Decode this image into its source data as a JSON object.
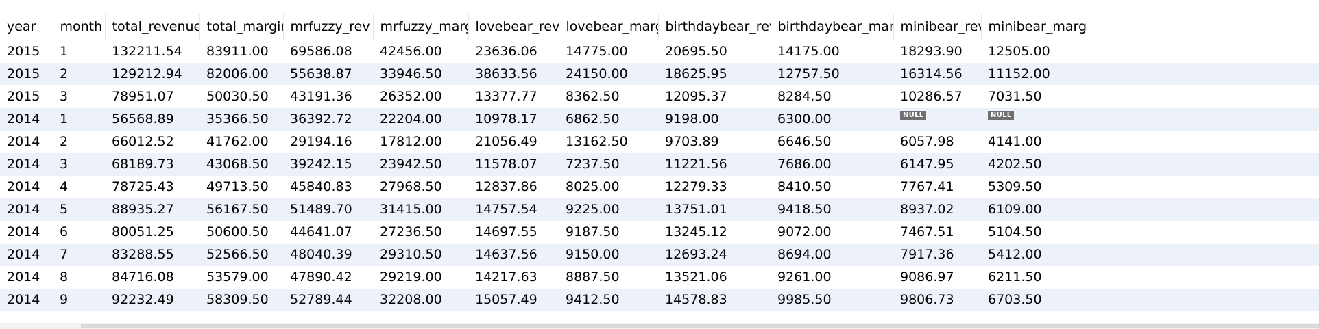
{
  "grid": {
    "columns": [
      "year",
      "month",
      "total_revenue",
      "total_margin",
      "mrfuzzy_rev",
      "mrfuzzy_marg",
      "lovebear_rev",
      "lovebear_marg",
      "birthdaybear_rev",
      "birthdaybear_marg",
      "minibear_rev",
      "minibear_marg"
    ],
    "null_label": "NULL",
    "rows": [
      [
        "2015",
        "1",
        "132211.54",
        "83911.00",
        "69586.08",
        "42456.00",
        "23636.06",
        "14775.00",
        "20695.50",
        "14175.00",
        "18293.90",
        "12505.00"
      ],
      [
        "2015",
        "2",
        "129212.94",
        "82006.00",
        "55638.87",
        "33946.50",
        "38633.56",
        "24150.00",
        "18625.95",
        "12757.50",
        "16314.56",
        "11152.00"
      ],
      [
        "2015",
        "3",
        "78951.07",
        "50030.50",
        "43191.36",
        "26352.00",
        "13377.77",
        "8362.50",
        "12095.37",
        "8284.50",
        "10286.57",
        "7031.50"
      ],
      [
        "2014",
        "1",
        "56568.89",
        "35366.50",
        "36392.72",
        "22204.00",
        "10978.17",
        "6862.50",
        "9198.00",
        "6300.00",
        null,
        null
      ],
      [
        "2014",
        "2",
        "66012.52",
        "41762.00",
        "29194.16",
        "17812.00",
        "21056.49",
        "13162.50",
        "9703.89",
        "6646.50",
        "6057.98",
        "4141.00"
      ],
      [
        "2014",
        "3",
        "68189.73",
        "43068.50",
        "39242.15",
        "23942.50",
        "11578.07",
        "7237.50",
        "11221.56",
        "7686.00",
        "6147.95",
        "4202.50"
      ],
      [
        "2014",
        "4",
        "78725.43",
        "49713.50",
        "45840.83",
        "27968.50",
        "12837.86",
        "8025.00",
        "12279.33",
        "8410.50",
        "7767.41",
        "5309.50"
      ],
      [
        "2014",
        "5",
        "88935.27",
        "56167.50",
        "51489.70",
        "31415.00",
        "14757.54",
        "9225.00",
        "13751.01",
        "9418.50",
        "8937.02",
        "6109.00"
      ],
      [
        "2014",
        "6",
        "80051.25",
        "50600.50",
        "44641.07",
        "27236.50",
        "14697.55",
        "9187.50",
        "13245.12",
        "9072.00",
        "7467.51",
        "5104.50"
      ],
      [
        "2014",
        "7",
        "83288.55",
        "52566.50",
        "48040.39",
        "29310.50",
        "14637.56",
        "9150.00",
        "12693.24",
        "8694.00",
        "7917.36",
        "5412.00"
      ],
      [
        "2014",
        "8",
        "84716.08",
        "53579.00",
        "47890.42",
        "29219.00",
        "14217.63",
        "8887.50",
        "13521.06",
        "9261.00",
        "9086.97",
        "6211.50"
      ],
      [
        "2014",
        "9",
        "92232.49",
        "58309.50",
        "52789.44",
        "32208.00",
        "15057.49",
        "9412.50",
        "14578.83",
        "9985.50",
        "9806.73",
        "6703.50"
      ]
    ]
  }
}
